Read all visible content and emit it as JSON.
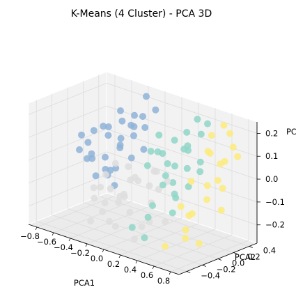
{
  "chart_data": {
    "type": "scatter",
    "projection": "3d",
    "title": "K-Means (4 Cluster) - PCA 3D",
    "xlabel": "PCA1",
    "ylabel": "PCA2",
    "zlabel": "PC",
    "xlim": [
      -0.9,
      0.9
    ],
    "ylim": [
      -0.5,
      0.5
    ],
    "zlim": [
      -0.28,
      0.25
    ],
    "x_ticks": [
      "−0.8",
      "−0.6",
      "−0.4",
      "−0.2",
      "0.0",
      "0.2",
      "0.4",
      "0.6",
      "0.8"
    ],
    "y_ticks": [
      "−0.4",
      "−0.2",
      "0.0",
      "0.2",
      "0.4"
    ],
    "z_ticks": [
      "−0.2",
      "−0.1",
      "0.0",
      "0.1",
      "0.2"
    ],
    "grid": true,
    "colors": {
      "cluster_0": "#8fb3d8",
      "cluster_1": "#dedede",
      "cluster_2": "#8fd6c7",
      "cluster_3": "#fdeb7d",
      "pane": "#f2f2f2",
      "pane_bottom": "#ebebeb"
    },
    "series": [
      {
        "points": [
          [
            -0.78,
            0.05,
            0.05
          ],
          [
            -0.74,
            -0.02,
            0.0
          ],
          [
            -0.7,
            0.1,
            -0.05
          ],
          [
            -0.66,
            0.08,
            0.08
          ],
          [
            -0.62,
            -0.05,
            -0.02
          ],
          [
            -0.6,
            0.2,
            0.05
          ],
          [
            -0.58,
            0.02,
            -0.1
          ],
          [
            -0.55,
            0.15,
            0.1
          ],
          [
            -0.52,
            -0.1,
            0.02
          ],
          [
            -0.5,
            0.12,
            -0.08
          ],
          [
            -0.48,
            0.25,
            0.12
          ],
          [
            -0.45,
            0.0,
            0.0
          ],
          [
            -0.43,
            0.18,
            0.06
          ],
          [
            -0.4,
            -0.05,
            -0.04
          ],
          [
            -0.38,
            0.3,
            0.15
          ],
          [
            -0.36,
            0.1,
            0.2
          ],
          [
            -0.34,
            0.22,
            -0.02
          ],
          [
            -0.32,
            0.05,
            0.05
          ],
          [
            -0.3,
            0.35,
            0.1
          ],
          [
            -0.28,
            0.15,
            0.14
          ],
          [
            -0.25,
            0.28,
            0.02
          ],
          [
            -0.22,
            0.4,
            0.18
          ],
          [
            -0.7,
            0.3,
            -0.15
          ],
          [
            -0.65,
            0.35,
            -0.12
          ],
          [
            -0.6,
            0.28,
            -0.18
          ],
          [
            -0.55,
            0.3,
            0.0
          ],
          [
            -0.5,
            0.42,
            0.03
          ],
          [
            -0.46,
            0.38,
            0.08
          ],
          [
            -0.42,
            0.45,
            0.12
          ],
          [
            -0.52,
            0.05,
            0.12
          ],
          [
            -0.58,
            -0.08,
            0.06
          ],
          [
            -0.35,
            0.42,
            0.22
          ]
        ]
      },
      {
        "points": [
          [
            -0.3,
            -0.3,
            -0.12
          ],
          [
            -0.25,
            -0.25,
            -0.18
          ],
          [
            -0.2,
            -0.2,
            -0.08
          ],
          [
            -0.15,
            -0.15,
            -0.14
          ],
          [
            -0.12,
            -0.3,
            -0.2
          ],
          [
            -0.1,
            -0.05,
            -0.05
          ],
          [
            -0.05,
            -0.18,
            -0.1
          ],
          [
            0.0,
            -0.1,
            -0.02
          ],
          [
            0.05,
            -0.22,
            -0.15
          ],
          [
            0.08,
            0.0,
            -0.06
          ],
          [
            0.1,
            -0.12,
            -0.22
          ],
          [
            0.12,
            0.05,
            0.0
          ],
          [
            0.15,
            -0.05,
            -0.12
          ],
          [
            0.2,
            0.1,
            -0.04
          ],
          [
            0.22,
            -0.15,
            -0.18
          ],
          [
            -0.35,
            -0.1,
            -0.05
          ],
          [
            -0.28,
            -0.05,
            0.0
          ],
          [
            -0.22,
            0.05,
            -0.02
          ],
          [
            -0.18,
            -0.35,
            -0.05
          ],
          [
            -0.08,
            -0.4,
            -0.1
          ],
          [
            0.0,
            -0.35,
            -0.2
          ],
          [
            0.18,
            -0.3,
            -0.24
          ],
          [
            -0.4,
            -0.2,
            -0.1
          ],
          [
            -0.15,
            0.1,
            -0.08
          ],
          [
            0.05,
            0.15,
            -0.1
          ],
          [
            0.25,
            0.02,
            -0.2
          ],
          [
            -0.05,
            0.2,
            -0.04
          ],
          [
            -0.32,
            0.1,
            -0.16
          ],
          [
            0.1,
            -0.4,
            -0.05
          ],
          [
            -0.25,
            -0.4,
            -0.2
          ]
        ]
      },
      {
        "points": [
          [
            0.05,
            0.2,
            0.05
          ],
          [
            0.1,
            0.3,
            0.1
          ],
          [
            0.15,
            0.25,
            0.0
          ],
          [
            0.2,
            0.35,
            0.14
          ],
          [
            0.22,
            0.15,
            -0.05
          ],
          [
            0.25,
            0.05,
            0.05
          ],
          [
            0.28,
            0.28,
            0.08
          ],
          [
            0.3,
            0.1,
            -0.1
          ],
          [
            0.32,
            -0.05,
            0.02
          ],
          [
            0.35,
            0.2,
            0.12
          ],
          [
            0.38,
            0.0,
            -0.06
          ],
          [
            0.4,
            0.32,
            0.16
          ],
          [
            0.42,
            0.12,
            0.04
          ],
          [
            0.45,
            -0.1,
            -0.12
          ],
          [
            0.48,
            0.22,
            0.02
          ],
          [
            0.5,
            0.05,
            -0.02
          ],
          [
            0.15,
            -0.1,
            0.05
          ],
          [
            0.18,
            0.0,
            0.1
          ],
          [
            0.25,
            -0.2,
            -0.15
          ],
          [
            0.3,
            -0.3,
            -0.22
          ],
          [
            0.2,
            -0.35,
            -0.18
          ],
          [
            0.35,
            -0.25,
            -0.08
          ],
          [
            0.1,
            0.1,
            0.15
          ],
          [
            0.42,
            0.38,
            0.2
          ],
          [
            0.05,
            0.05,
            0.08
          ],
          [
            0.28,
            0.4,
            0.2
          ],
          [
            0.38,
            -0.15,
            0.0
          ],
          [
            0.12,
            0.4,
            0.05
          ],
          [
            0.55,
            0.15,
            0.08
          ]
        ]
      },
      {
        "points": [
          [
            0.45,
            0.4,
            0.15
          ],
          [
            0.5,
            0.3,
            0.1
          ],
          [
            0.55,
            0.45,
            0.2
          ],
          [
            0.6,
            0.35,
            0.05
          ],
          [
            0.62,
            0.2,
            0.12
          ],
          [
            0.65,
            0.42,
            0.18
          ],
          [
            0.68,
            0.1,
            0.0
          ],
          [
            0.7,
            0.3,
            0.08
          ],
          [
            0.72,
            0.05,
            -0.05
          ],
          [
            0.75,
            0.22,
            -0.02
          ],
          [
            0.78,
            0.38,
            0.1
          ],
          [
            0.8,
            0.15,
            -0.1
          ],
          [
            0.6,
            -0.05,
            -0.12
          ],
          [
            0.55,
            -0.1,
            -0.08
          ],
          [
            0.65,
            -0.15,
            -0.2
          ],
          [
            0.7,
            -0.2,
            -0.15
          ],
          [
            0.5,
            -0.25,
            -0.24
          ],
          [
            0.58,
            0.0,
            0.02
          ],
          [
            0.75,
            -0.08,
            -0.22
          ],
          [
            0.82,
            0.28,
            0.16
          ],
          [
            0.48,
            0.12,
            -0.15
          ],
          [
            0.85,
            0.05,
            0.05
          ]
        ]
      }
    ]
  }
}
